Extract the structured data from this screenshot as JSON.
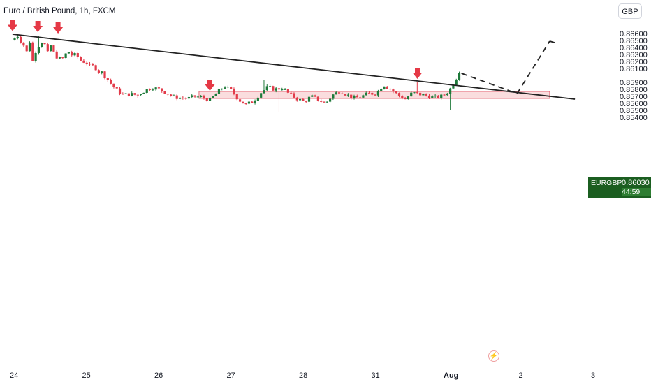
{
  "header": {
    "symbol_title": "Euro / British Pound, 1h, FXCM",
    "currency_button": "GBP"
  },
  "price_tag": {
    "symbol": "EURGBP",
    "price": "0.86030",
    "countdown": "44:59",
    "color": "#1b5e20"
  },
  "icons": {
    "flash": "lightning-bolt-icon"
  },
  "colors": {
    "up": "#1e7a3a",
    "down": "#e23b4a",
    "zone": "#f6c6c8",
    "zone_border": "#e05060",
    "arrow": "#e53946",
    "line": "#222222"
  },
  "chart_data": {
    "type": "candlestick",
    "title": "Euro / British Pound, 1h, FXCM",
    "y_axis": {
      "ticks": [
        "0.86600",
        "0.86500",
        "0.86400",
        "0.86300",
        "0.86200",
        "0.86100",
        "0.85900",
        "0.85800",
        "0.85700",
        "0.85600",
        "0.85500",
        "0.85400"
      ],
      "range": [
        0.8534,
        0.8665
      ],
      "position": "right"
    },
    "x_axis": {
      "ticks": [
        "24",
        "25",
        "26",
        "27",
        "28",
        "31",
        "Aug",
        "2",
        "3"
      ],
      "bold": [
        "Aug"
      ],
      "index": [
        0,
        1,
        2,
        3,
        4,
        5,
        6,
        7,
        8
      ]
    },
    "last_price": 0.8603,
    "close_path": [
      [
        0.0,
        0.8653
      ],
      [
        0.04,
        0.8657
      ],
      [
        0.08,
        0.865
      ],
      [
        0.12,
        0.8645
      ],
      [
        0.16,
        0.863
      ],
      [
        0.2,
        0.8654
      ],
      [
        0.25,
        0.862
      ],
      [
        0.3,
        0.8638
      ],
      [
        0.35,
        0.8646
      ],
      [
        0.4,
        0.865
      ],
      [
        0.45,
        0.863
      ],
      [
        0.5,
        0.8643
      ],
      [
        0.55,
        0.863
      ],
      [
        0.6,
        0.8625
      ],
      [
        0.65,
        0.8622
      ],
      [
        0.7,
        0.863
      ],
      [
        0.75,
        0.8634
      ],
      [
        0.8,
        0.8628
      ],
      [
        0.85,
        0.863
      ],
      [
        0.9,
        0.8622
      ],
      [
        1.0,
        0.8618
      ],
      [
        1.05,
        0.8612
      ],
      [
        1.1,
        0.8614
      ],
      [
        1.15,
        0.8606
      ],
      [
        1.2,
        0.8605
      ],
      [
        1.3,
        0.8592
      ],
      [
        1.4,
        0.858
      ],
      [
        1.5,
        0.8572
      ],
      [
        1.6,
        0.8573
      ],
      [
        1.7,
        0.8572
      ],
      [
        1.8,
        0.8578
      ],
      [
        1.9,
        0.8583
      ],
      [
        2.0,
        0.858
      ],
      [
        2.1,
        0.8575
      ],
      [
        2.2,
        0.8569
      ],
      [
        2.3,
        0.8568
      ],
      [
        2.4,
        0.8567
      ],
      [
        2.5,
        0.857
      ],
      [
        2.6,
        0.8568
      ],
      [
        2.7,
        0.8565
      ],
      [
        2.8,
        0.8575
      ],
      [
        2.9,
        0.8585
      ],
      [
        3.0,
        0.8578
      ],
      [
        3.1,
        0.8565
      ],
      [
        3.2,
        0.8558
      ],
      [
        3.3,
        0.8563
      ],
      [
        3.4,
        0.8575
      ],
      [
        3.5,
        0.8583
      ],
      [
        3.6,
        0.858
      ],
      [
        3.7,
        0.8582
      ],
      [
        3.8,
        0.8573
      ],
      [
        3.9,
        0.8567
      ],
      [
        4.0,
        0.8562
      ],
      [
        4.1,
        0.857
      ],
      [
        4.2,
        0.8565
      ],
      [
        4.3,
        0.856
      ],
      [
        4.4,
        0.8572
      ],
      [
        4.5,
        0.8578
      ],
      [
        4.6,
        0.8572
      ],
      [
        4.7,
        0.8567
      ],
      [
        4.8,
        0.857
      ],
      [
        4.9,
        0.8574
      ],
      [
        5.0,
        0.8574
      ],
      [
        5.1,
        0.8587
      ],
      [
        5.2,
        0.858
      ],
      [
        5.3,
        0.8572
      ],
      [
        5.4,
        0.8566
      ],
      [
        5.5,
        0.8575
      ],
      [
        5.6,
        0.8573
      ],
      [
        5.7,
        0.8571
      ],
      [
        5.8,
        0.8568
      ],
      [
        5.9,
        0.857
      ],
      [
        6.0,
        0.8576
      ],
      [
        6.1,
        0.8595
      ],
      [
        6.15,
        0.8603
      ]
    ],
    "extrema": [
      {
        "x": 0.05,
        "high": 0.866
      },
      {
        "x": 0.28,
        "low": 0.862
      },
      {
        "x": 0.35,
        "high": 0.8656
      },
      {
        "x": 1.72,
        "low": 0.8568
      },
      {
        "x": 3.45,
        "high": 0.8593
      },
      {
        "x": 3.67,
        "low": 0.8547
      },
      {
        "x": 4.48,
        "low": 0.8552
      },
      {
        "x": 5.55,
        "high": 0.859
      },
      {
        "x": 6.02,
        "low": 0.8551
      },
      {
        "x": 6.18,
        "high": 0.8607
      }
    ],
    "trendline": {
      "from": [
        -0.03,
        0.8659
      ],
      "to": [
        7.75,
        0.8566
      ]
    },
    "zone": {
      "from_x": 2.55,
      "to_x": 7.4,
      "low": 0.8572,
      "high": 0.8574
    },
    "projection": [
      [
        6.18,
        0.8603
      ],
      [
        6.95,
        0.8574
      ],
      [
        7.4,
        0.8649
      ],
      [
        7.5,
        0.8646
      ]
    ],
    "markers": [
      {
        "x": -0.03,
        "price": 0.86635
      },
      {
        "x": 0.32,
        "price": 0.8662
      },
      {
        "x": 0.6,
        "price": 0.866
      },
      {
        "x": 2.7,
        "price": 0.8578
      },
      {
        "x": 5.57,
        "price": 0.8595
      }
    ]
  }
}
